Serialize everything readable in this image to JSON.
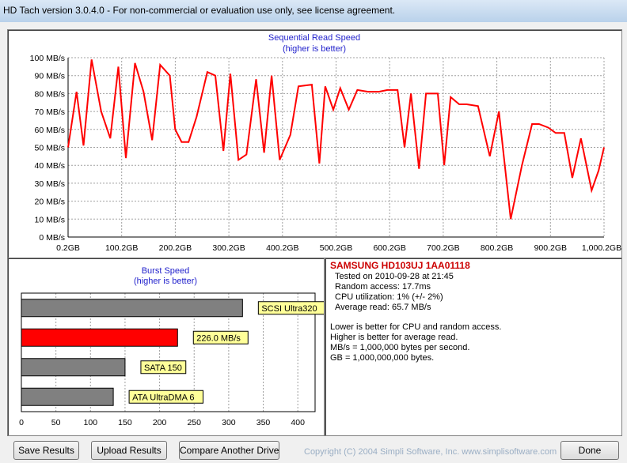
{
  "window": {
    "title": "HD Tach version 3.0.4.0  - For non-commercial or evaluation use only, see license agreement."
  },
  "colors": {
    "series": "#ff0000",
    "title_text": "#2222cc",
    "drive_name": "#cc0000",
    "bar_gray": "#808080",
    "label_yellow": "#ffff99"
  },
  "read_chart": {
    "title": "Sequential Read Speed",
    "subtitle": "(higher is better)"
  },
  "chart_data": [
    {
      "type": "line",
      "title": "Sequential Read Speed",
      "subtitle": "(higher is better)",
      "y_ticks": [
        "0 MB/s",
        "10 MB/s",
        "20 MB/s",
        "30 MB/s",
        "40 MB/s",
        "50 MB/s",
        "60 MB/s",
        "70 MB/s",
        "80 MB/s",
        "90 MB/s",
        "100 MB/s"
      ],
      "x_ticks": [
        "0.2GB",
        "100.2GB",
        "200.2GB",
        "300.2GB",
        "400.2GB",
        "500.2GB",
        "600.2GB",
        "700.2GB",
        "800.2GB",
        "900.2GB",
        "1,000.2GB"
      ],
      "xlim": [
        0.2,
        1000.2
      ],
      "ylim": [
        0,
        100
      ],
      "grid": true,
      "series": [
        {
          "x": [
            0.2,
            16,
            29,
            44,
            62,
            79,
            94,
            108,
            125,
            141,
            157,
            172,
            190,
            200,
            212,
            225,
            240,
            260,
            275,
            290,
            303,
            318,
            333,
            351,
            366,
            380,
            395,
            415,
            430,
            455,
            469,
            480,
            495,
            508,
            524,
            540,
            560,
            580,
            596,
            615,
            628,
            640,
            655,
            668,
            690,
            702,
            714,
            730,
            744,
            765,
            787,
            804,
            826,
            847,
            866,
            879,
            896,
            910,
            926,
            941,
            957,
            977,
            990,
            1000.2
          ],
          "y": [
            50,
            81,
            51,
            99,
            70,
            55,
            95,
            44,
            97,
            81,
            54,
            96,
            90,
            60,
            53,
            53,
            67,
            92,
            90,
            48,
            91,
            43,
            46,
            88,
            47,
            90,
            43,
            57,
            84,
            85,
            41,
            84,
            71,
            83,
            71,
            82,
            81,
            81,
            82,
            82,
            50,
            80,
            38,
            80,
            80,
            40,
            78,
            74,
            74,
            73,
            45,
            70,
            10,
            40,
            63,
            63,
            61,
            58,
            58,
            33,
            55,
            26,
            37,
            50
          ]
        }
      ]
    },
    {
      "type": "bar",
      "orientation": "horizontal",
      "title": "Burst Speed",
      "subtitle": "(higher is better)",
      "categories": [
        "SCSI Ultra320",
        "226.0 MB/s",
        "SATA 150",
        "ATA UltraDMA 6"
      ],
      "values": [
        320,
        226,
        150,
        133
      ],
      "highlight": [
        false,
        true,
        false,
        false
      ],
      "x_ticks": [
        "0",
        "50",
        "100",
        "150",
        "200",
        "250",
        "300",
        "350",
        "400"
      ],
      "xlim": [
        0,
        425
      ],
      "grid": true
    }
  ],
  "drive": {
    "name": "SAMSUNG HD103UJ 1AA01118",
    "lines": [
      "Tested on 2010-09-28 at 21:45",
      "Random access: 17.7ms",
      "CPU utilization: 1% (+/- 2%)",
      "Average read: 65.7 MB/s"
    ],
    "notes": [
      "Lower is better for CPU and random access.",
      "Higher is better for average read.",
      "MB/s = 1,000,000 bytes per second.",
      "GB = 1,000,000,000 bytes."
    ]
  },
  "buttons": {
    "save": "Save Results",
    "upload": "Upload Results",
    "compare": "Compare Another Drive",
    "done": "Done"
  },
  "copyright": "Copyright (C) 2004 Simpli Software, Inc. www.simplisoftware.com"
}
